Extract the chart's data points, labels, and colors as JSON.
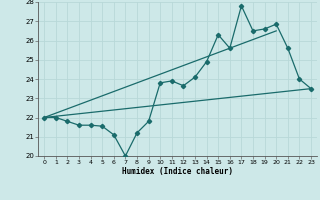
{
  "xlabel": "Humidex (Indice chaleur)",
  "bg_color": "#cde8e8",
  "line_color": "#1a6b6b",
  "grid_color": "#b8d8d8",
  "xlim": [
    -0.5,
    23.5
  ],
  "ylim": [
    20,
    28
  ],
  "xticks": [
    0,
    1,
    2,
    3,
    4,
    5,
    6,
    7,
    8,
    9,
    10,
    11,
    12,
    13,
    14,
    15,
    16,
    17,
    18,
    19,
    20,
    21,
    22,
    23
  ],
  "yticks": [
    20,
    21,
    22,
    23,
    24,
    25,
    26,
    27,
    28
  ],
  "humidex_values": [
    22,
    22,
    21.8,
    21.6,
    21.6,
    21.55,
    21.1,
    20.0,
    21.2,
    21.8,
    23.8,
    23.9,
    23.65,
    24.1,
    24.9,
    26.3,
    25.6,
    27.8,
    26.5,
    26.6,
    26.85,
    25.6,
    24.0,
    23.5
  ],
  "trend_line": [
    [
      0,
      23
    ],
    [
      22.0,
      23.5
    ]
  ],
  "trend_line2": [
    [
      0,
      20
    ],
    [
      22.0,
      26.5
    ]
  ]
}
